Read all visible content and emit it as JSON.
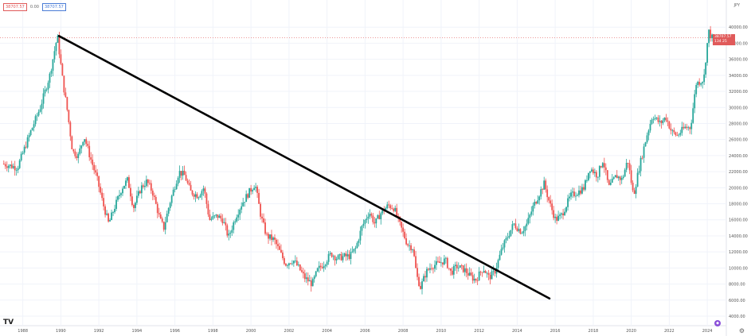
{
  "toolbar": {
    "sell_price": "38707.57",
    "mid_label": "0.00",
    "buy_price": "38707.57",
    "currency": "JPY"
  },
  "last_price": {
    "value": "38707.57",
    "countdown": "134 25"
  },
  "logo_text": "TV",
  "colors": {
    "up": "#26a69a",
    "down": "#ef5350",
    "trendline": "#000000",
    "grid": "#f0f3fa",
    "tag": "#e05a5a"
  },
  "chart_data": {
    "type": "candlestick",
    "interval": "monthly",
    "title": "",
    "xlabel": "",
    "ylabel": "",
    "xlim": [
      1986.8,
      2025.0
    ],
    "ylim": [
      4000,
      42000
    ],
    "x_ticks": [
      "1988",
      "1990",
      "1992",
      "1994",
      "1996",
      "1998",
      "2000",
      "2002",
      "2004",
      "2006",
      "2008",
      "2010",
      "2012",
      "2014",
      "2016",
      "2018",
      "2020",
      "2022",
      "2024"
    ],
    "y_ticks": [
      "4000.00",
      "6000.00",
      "8000.00",
      "10000.00",
      "12000.00",
      "14000.00",
      "16000.00",
      "18000.00",
      "20000.00",
      "22000.00",
      "24000.00",
      "26000.00",
      "28000.00",
      "30000.00",
      "32000.00",
      "34000.00",
      "36000.00",
      "38000.00",
      "40000.00"
    ],
    "price_path": [
      [
        1987.0,
        23000
      ],
      [
        1987.8,
        22500
      ],
      [
        1988.5,
        27000
      ],
      [
        1989.0,
        30000
      ],
      [
        1989.5,
        34000
      ],
      [
        1989.9,
        38900
      ],
      [
        1990.2,
        33000
      ],
      [
        1990.4,
        30000
      ],
      [
        1990.7,
        24500
      ],
      [
        1991.0,
        24000
      ],
      [
        1991.3,
        26500
      ],
      [
        1991.6,
        24000
      ],
      [
        1992.0,
        21000
      ],
      [
        1992.3,
        18000
      ],
      [
        1992.6,
        15500
      ],
      [
        1992.9,
        17500
      ],
      [
        1993.3,
        20000
      ],
      [
        1993.6,
        21000
      ],
      [
        1993.9,
        17500
      ],
      [
        1994.3,
        20000
      ],
      [
        1994.6,
        20800
      ],
      [
        1994.9,
        19500
      ],
      [
        1995.3,
        16000
      ],
      [
        1995.5,
        15000
      ],
      [
        1995.8,
        18000
      ],
      [
        1996.3,
        22000
      ],
      [
        1996.6,
        21500
      ],
      [
        1996.9,
        19500
      ],
      [
        1997.3,
        19000
      ],
      [
        1997.6,
        20000
      ],
      [
        1997.9,
        16000
      ],
      [
        1998.3,
        16500
      ],
      [
        1998.6,
        16000
      ],
      [
        1998.9,
        13800
      ],
      [
        1999.3,
        16500
      ],
      [
        1999.6,
        18000
      ],
      [
        2000.0,
        19500
      ],
      [
        2000.3,
        20500
      ],
      [
        2000.6,
        16500
      ],
      [
        2000.9,
        14000
      ],
      [
        2001.3,
        13500
      ],
      [
        2001.6,
        12000
      ],
      [
        2001.9,
        10500
      ],
      [
        2002.3,
        11000
      ],
      [
        2002.6,
        10000
      ],
      [
        2002.9,
        8800
      ],
      [
        2003.3,
        8000
      ],
      [
        2003.6,
        9800
      ],
      [
        2003.9,
        10500
      ],
      [
        2004.3,
        11800
      ],
      [
        2004.6,
        11200
      ],
      [
        2004.9,
        11400
      ],
      [
        2005.3,
        11500
      ],
      [
        2005.6,
        12500
      ],
      [
        2005.9,
        15000
      ],
      [
        2006.3,
        17000
      ],
      [
        2006.6,
        15500
      ],
      [
        2006.9,
        16800
      ],
      [
        2007.3,
        17800
      ],
      [
        2007.6,
        17500
      ],
      [
        2007.9,
        15500
      ],
      [
        2008.3,
        13000
      ],
      [
        2008.6,
        12500
      ],
      [
        2008.8,
        9000
      ],
      [
        2009.0,
        7600
      ],
      [
        2009.3,
        9500
      ],
      [
        2009.6,
        10300
      ],
      [
        2009.9,
        10500
      ],
      [
        2010.3,
        11000
      ],
      [
        2010.6,
        9400
      ],
      [
        2010.9,
        10200
      ],
      [
        2011.3,
        9800
      ],
      [
        2011.6,
        9000
      ],
      [
        2011.9,
        8500
      ],
      [
        2012.3,
        10000
      ],
      [
        2012.6,
        8800
      ],
      [
        2012.9,
        9500
      ],
      [
        2013.3,
        12500
      ],
      [
        2013.6,
        14000
      ],
      [
        2013.9,
        15500
      ],
      [
        2014.3,
        14500
      ],
      [
        2014.6,
        15500
      ],
      [
        2014.9,
        17500
      ],
      [
        2015.3,
        19500
      ],
      [
        2015.5,
        20500
      ],
      [
        2015.8,
        18000
      ],
      [
        2016.1,
        16000
      ],
      [
        2016.4,
        16500
      ],
      [
        2016.9,
        19000
      ],
      [
        2017.3,
        19500
      ],
      [
        2017.6,
        20000
      ],
      [
        2017.9,
        22500
      ],
      [
        2018.3,
        21500
      ],
      [
        2018.6,
        23500
      ],
      [
        2018.9,
        20000
      ],
      [
        2019.3,
        21500
      ],
      [
        2019.6,
        21000
      ],
      [
        2019.9,
        23500
      ],
      [
        2020.2,
        19000
      ],
      [
        2020.5,
        22500
      ],
      [
        2020.9,
        26500
      ],
      [
        2021.2,
        29000
      ],
      [
        2021.6,
        28000
      ],
      [
        2021.9,
        28800
      ],
      [
        2022.2,
        27000
      ],
      [
        2022.5,
        26500
      ],
      [
        2022.9,
        27500
      ],
      [
        2023.2,
        27500
      ],
      [
        2023.5,
        33000
      ],
      [
        2023.9,
        33500
      ],
      [
        2024.0,
        36000
      ],
      [
        2024.15,
        39500
      ],
      [
        2024.3,
        38700
      ]
    ],
    "trendline": {
      "start": [
        1989.9,
        38900
      ],
      "end": [
        2015.7,
        6200
      ]
    }
  }
}
